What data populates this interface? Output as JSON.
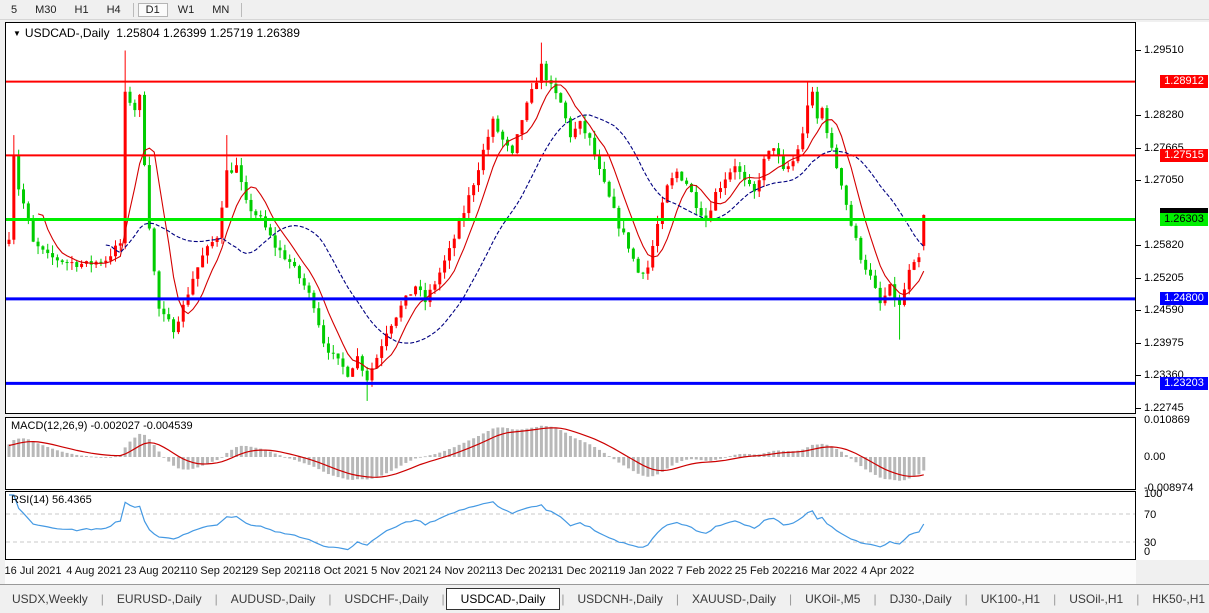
{
  "toolbar": {
    "items": [
      {
        "label": "5",
        "active": false
      },
      {
        "label": "M30",
        "active": false
      },
      {
        "label": "H1",
        "active": false
      },
      {
        "label": "H4",
        "active": false
      },
      {
        "label": "D1",
        "active": true
      },
      {
        "label": "W1",
        "active": false
      },
      {
        "label": "MN",
        "active": false
      }
    ]
  },
  "chart_data": {
    "type": "candlestick",
    "title": {
      "dropdown_icon": "▼",
      "symbol": "USDCAD-,Daily",
      "open": "1.25804",
      "high": "1.26399",
      "low": "1.25719",
      "close": "1.26389"
    },
    "x_labels": [
      "16 Jul 2021",
      "4 Aug 2021",
      "23 Aug 2021",
      "10 Sep 2021",
      "29 Sep 2021",
      "18 Oct 2021",
      "5 Nov 2021",
      "24 Nov 2021",
      "13 Dec 2021",
      "31 Dec 2021",
      "19 Jan 2022",
      "7 Feb 2022",
      "25 Feb 2022",
      "16 Mar 2022",
      "4 Apr 2022"
    ],
    "y_ticks": [
      "1.29510",
      "1.28280",
      "1.27665",
      "1.27050",
      "1.25820",
      "1.25205",
      "1.24590",
      "1.23975",
      "1.23360",
      "1.22745"
    ],
    "ylim": [
      1.2245,
      1.2995
    ],
    "num_candles": 190,
    "up_color": "#FF0000",
    "down_color": "#00CC00",
    "price_anchors": [
      [
        0,
        1.26
      ],
      [
        1,
        1.2755
      ],
      [
        2,
        1.269
      ],
      [
        3,
        1.266
      ],
      [
        5,
        1.2585
      ],
      [
        8,
        1.256
      ],
      [
        12,
        1.255
      ],
      [
        16,
        1.2545
      ],
      [
        20,
        1.2555
      ],
      [
        23,
        1.2585
      ],
      [
        24,
        1.2865
      ],
      [
        25,
        1.2855
      ],
      [
        26,
        1.284
      ],
      [
        27,
        1.286
      ],
      [
        28,
        1.274
      ],
      [
        29,
        1.262
      ],
      [
        30,
        1.253
      ],
      [
        31,
        1.246
      ],
      [
        32,
        1.2445
      ],
      [
        34,
        1.2425
      ],
      [
        36,
        1.2465
      ],
      [
        38,
        1.252
      ],
      [
        40,
        1.256
      ],
      [
        43,
        1.26
      ],
      [
        45,
        1.272
      ],
      [
        47,
        1.273
      ],
      [
        49,
        1.266
      ],
      [
        52,
        1.263
      ],
      [
        55,
        1.258
      ],
      [
        58,
        1.255
      ],
      [
        61,
        1.2505
      ],
      [
        63,
        1.247
      ],
      [
        65,
        1.24
      ],
      [
        67,
        1.237
      ],
      [
        70,
        1.234
      ],
      [
        72,
        1.237
      ],
      [
        74,
        1.233
      ],
      [
        76,
        1.237
      ],
      [
        78,
        1.242
      ],
      [
        81,
        1.2465
      ],
      [
        84,
        1.2505
      ],
      [
        86,
        1.2475
      ],
      [
        88,
        1.251
      ],
      [
        91,
        1.257
      ],
      [
        94,
        1.2645
      ],
      [
        96,
        1.27
      ],
      [
        98,
        1.276
      ],
      [
        100,
        1.2815
      ],
      [
        102,
        1.278
      ],
      [
        104,
        1.275
      ],
      [
        106,
        1.282
      ],
      [
        108,
        1.287
      ],
      [
        110,
        1.292
      ],
      [
        112,
        1.288
      ],
      [
        114,
        1.285
      ],
      [
        116,
        1.279
      ],
      [
        118,
        1.281
      ],
      [
        120,
        1.278
      ],
      [
        122,
        1.272
      ],
      [
        124,
        1.267
      ],
      [
        126,
        1.262
      ],
      [
        128,
        1.258
      ],
      [
        130,
        1.253
      ],
      [
        132,
        1.254
      ],
      [
        134,
        1.262
      ],
      [
        136,
        1.269
      ],
      [
        138,
        1.272
      ],
      [
        140,
        1.27
      ],
      [
        142,
        1.266
      ],
      [
        144,
        1.263
      ],
      [
        146,
        1.268
      ],
      [
        148,
        1.271
      ],
      [
        150,
        1.2735
      ],
      [
        152,
        1.27
      ],
      [
        154,
        1.268
      ],
      [
        156,
        1.274
      ],
      [
        158,
        1.277
      ],
      [
        160,
        1.272
      ],
      [
        162,
        1.274
      ],
      [
        164,
        1.279
      ],
      [
        165,
        1.285
      ],
      [
        166,
        1.2865
      ],
      [
        167,
        1.282
      ],
      [
        168,
        1.284
      ],
      [
        170,
        1.276
      ],
      [
        172,
        1.27
      ],
      [
        174,
        1.262
      ],
      [
        176,
        1.256
      ],
      [
        178,
        1.252
      ],
      [
        180,
        1.247
      ],
      [
        182,
        1.25
      ],
      [
        184,
        1.2465
      ],
      [
        186,
        1.253
      ],
      [
        188,
        1.2555
      ],
      [
        189,
        1.26389
      ]
    ],
    "spike_wicks": [
      [
        1,
        "high",
        1.279
      ],
      [
        24,
        "high",
        1.295
      ],
      [
        34,
        "low",
        1.2405
      ],
      [
        45,
        "high",
        1.279
      ],
      [
        74,
        "low",
        1.2287
      ],
      [
        110,
        "high",
        1.2965
      ],
      [
        165,
        "high",
        1.289
      ],
      [
        184,
        "low",
        1.2403
      ]
    ],
    "hlines": [
      {
        "price": 1.28912,
        "label": "1.28912",
        "color": "#FF0000",
        "thickness": 2,
        "text_color": "#FFFFFF"
      },
      {
        "price": 1.27515,
        "label": "1.27515",
        "color": "#FF0000",
        "thickness": 2,
        "text_color": "#FFFFFF"
      },
      {
        "price": 1.26303,
        "label": "1.26303",
        "color": "#00EE00",
        "thickness": 3,
        "text_color": "#000000"
      },
      {
        "price": 1.248,
        "label": "1.24800",
        "color": "#0000FF",
        "thickness": 3,
        "text_color": "#FFFFFF"
      },
      {
        "price": 1.23203,
        "label": "1.23203",
        "color": "#0000FF",
        "thickness": 3,
        "text_color": "#FFFFFF"
      }
    ],
    "current_price_label": {
      "value": "1.26389",
      "bg": "#000000"
    },
    "moving_averages": [
      {
        "period": 7,
        "color": "#D40000",
        "style": "solid"
      },
      {
        "period": 21,
        "color": "#000080",
        "style": "dashed"
      }
    ],
    "indicators": [
      {
        "name": "MACD",
        "label": "MACD(12,26,9) -0.002027 -0.004539",
        "fast": 12,
        "slow": 26,
        "signal": 9,
        "values": [
          "-0.002027",
          "-0.004539"
        ],
        "y_ticks": [
          "0.010869",
          "0.00",
          "-0.008974"
        ],
        "hist_color": "#B8B8B8",
        "signal_color": "#CC0000"
      },
      {
        "name": "RSI",
        "label": "RSI(14) 56.4365",
        "period": 14,
        "value": "56.4365",
        "levels": [
          70,
          30
        ],
        "y_ticks": [
          "100",
          "70",
          "30",
          "0"
        ],
        "line_color": "#4499E3"
      }
    ]
  },
  "tabs": {
    "items": [
      {
        "label": "USDX,Weekly",
        "active": false
      },
      {
        "label": "EURUSD-,Daily",
        "active": false
      },
      {
        "label": "AUDUSD-,Daily",
        "active": false
      },
      {
        "label": "USDCHF-,Daily",
        "active": false
      },
      {
        "label": "USDCAD-,Daily",
        "active": true
      },
      {
        "label": "USDCNH-,Daily",
        "active": false
      },
      {
        "label": "XAUUSD-,Daily",
        "active": false
      },
      {
        "label": "UKOil-,M5",
        "active": false
      },
      {
        "label": "DJ30-,Daily",
        "active": false
      },
      {
        "label": "UK100-,H1",
        "active": false
      },
      {
        "label": "USOil-,H1",
        "active": false
      },
      {
        "label": "HK50-,H1",
        "active": false
      }
    ],
    "scroll_left": "◂",
    "scroll_right": "▸"
  }
}
